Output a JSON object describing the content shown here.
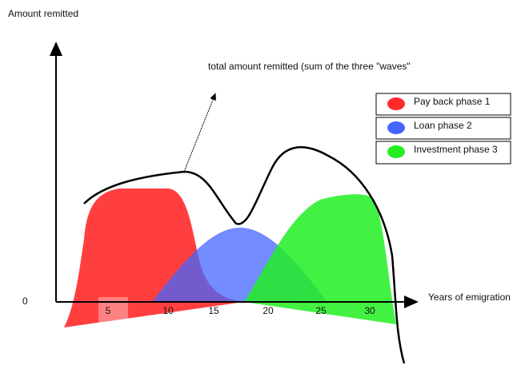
{
  "y_axis_label": "Amount remitted",
  "origin_label": "0",
  "x_axis_label": "Years of emigration",
  "x_ticks": [
    "5",
    "10",
    "15",
    "20",
    "25",
    "30"
  ],
  "annotation": "total amount remitted (sum of the three \"waves\"",
  "legend": [
    "Pay back phase 1",
    "Loan phase 2",
    "Investment phase 3"
  ]
}
